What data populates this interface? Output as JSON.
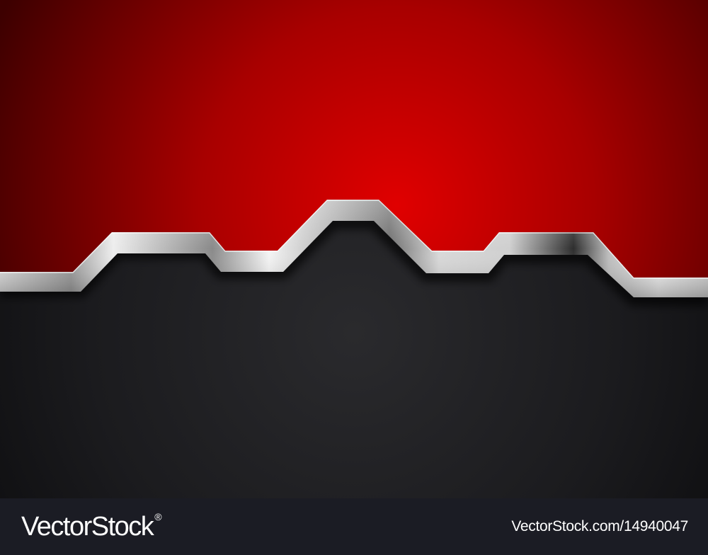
{
  "image": {
    "colors": {
      "red_center": "#e00000",
      "red_edge": "#3d0000",
      "dark_center": "#2a2a2d",
      "dark_edge": "#0d0d0f",
      "metal_light": "#f2f2f2",
      "metal_dark": "#4a4a4a",
      "footer_bg": "#1b1c24"
    }
  },
  "watermark": {
    "brand": "VectorStock",
    "registered_mark": "®",
    "site": "VectorStock.com/14940047"
  }
}
